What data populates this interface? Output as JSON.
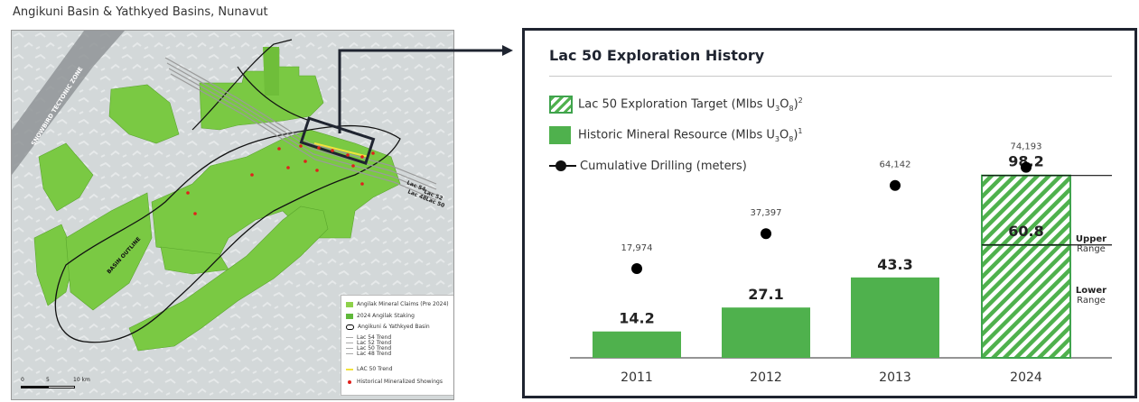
{
  "map": {
    "title": "Angikuni Basin & Yathkyed Basins, Nunavut",
    "labels": {
      "zone": "SNOWBIRD TECTONIC ZONE",
      "basin": "BASIN OUTLINE",
      "lac54": "Lac 54",
      "lac52": "Lac 52",
      "lac50": "Lac 50",
      "lac48": "Lac 48"
    },
    "legend": {
      "items": [
        {
          "label": "Angilak Mineral Claims (Pre 2024)",
          "color": "#8ed14a"
        },
        {
          "label": "2024 Angilak Staking",
          "color": "#5fb83a"
        },
        {
          "label": "Angikuni & Yathkyed Basin",
          "color": "#000000"
        },
        {
          "label": "Lac 54 Trend",
          "color": "#aaaaaa"
        },
        {
          "label": "Lac 52 Trend",
          "color": "#aaaaaa"
        },
        {
          "label": "Lac 50 Trend",
          "color": "#aaaaaa"
        },
        {
          "label": "Lac 48 Trend",
          "color": "#aaaaaa"
        },
        {
          "label": "LAC 50 Trend",
          "color": "#f2e23c"
        },
        {
          "label": "Historical Mineralized Showings",
          "color": "#e0201b"
        }
      ]
    },
    "scale": {
      "t0": "0",
      "t5": "5",
      "t10": "10 km"
    }
  },
  "panel": {
    "title": "Lac 50 Exploration History",
    "legend": {
      "target": {
        "text": "Lac 50 Exploration Target (Mlbs U",
        "sub1": "3",
        "mid": "O",
        "sub2": "8",
        "end": ")",
        "sup": "2"
      },
      "resource": {
        "text": "Historic Mineral Resource (Mlbs U",
        "sub1": "3",
        "mid": "O",
        "sub2": "8",
        "end": ")",
        "sup": "1"
      },
      "drilling": {
        "text": "Cumulative Drilling (meters)"
      }
    },
    "range": {
      "upper": "Upper",
      "lower": "Lower",
      "word": "Range"
    }
  },
  "chart_data": {
    "type": "bar",
    "title": "Lac 50 Exploration History",
    "categories": [
      "2011",
      "2012",
      "2013",
      "2024"
    ],
    "series": [
      {
        "name": "Historic Mineral Resource (Mlbs U3O8)",
        "values": [
          14.2,
          27.1,
          43.3,
          null
        ],
        "color": "#4fb14d"
      },
      {
        "name": "Lac 50 Exploration Target (Mlbs U3O8)",
        "values": [
          null,
          null,
          null,
          [
            60.8,
            98.2
          ]
        ],
        "color": "#4fb14d",
        "pattern": "hatched"
      },
      {
        "name": "Cumulative Drilling (meters)",
        "type": "scatter",
        "values": [
          17974,
          37397,
          64142,
          74193
        ],
        "color": "#000000"
      }
    ],
    "value_labels": [
      "14.2",
      "27.1",
      "43.3"
    ],
    "target_labels": {
      "upper": "98.2",
      "lower": "60.8"
    },
    "drill_labels": [
      "17,974",
      "37,397",
      "64,142",
      "74,193"
    ],
    "ylim": [
      0,
      100
    ],
    "drill_ylim": [
      0,
      100000
    ]
  }
}
